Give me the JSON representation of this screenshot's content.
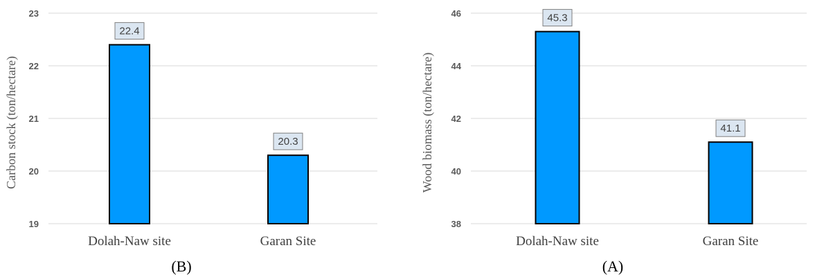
{
  "chart_data": [
    {
      "type": "bar",
      "panel_label": "(B)",
      "categories": [
        "Dolah-Naw site",
        "Garan Site"
      ],
      "values": [
        22.4,
        20.3
      ],
      "data_labels": [
        "22.4",
        "20.3"
      ],
      "ylabel": "Carbon stock (ton/hectare)",
      "ylim": [
        19,
        23
      ],
      "yticks": [
        "19",
        "20",
        "21",
        "22",
        "23"
      ],
      "grid": true,
      "bar_color": "#0099ff",
      "bar_edge_color": "#000000",
      "label_box_color": "#dbe6f1"
    },
    {
      "type": "bar",
      "panel_label": "(A)",
      "categories": [
        "Dolah-Naw site",
        "Garan Site"
      ],
      "values": [
        45.3,
        41.1
      ],
      "data_labels": [
        "45.3",
        "41.1"
      ],
      "ylabel": "Wood biomass (ton/hectare)",
      "ylim": [
        38,
        46
      ],
      "yticks": [
        "38",
        "40",
        "42",
        "44",
        "46"
      ],
      "grid": true,
      "bar_color": "#0099ff",
      "bar_edge_color": "#000000",
      "label_box_color": "#dbe6f1"
    }
  ]
}
